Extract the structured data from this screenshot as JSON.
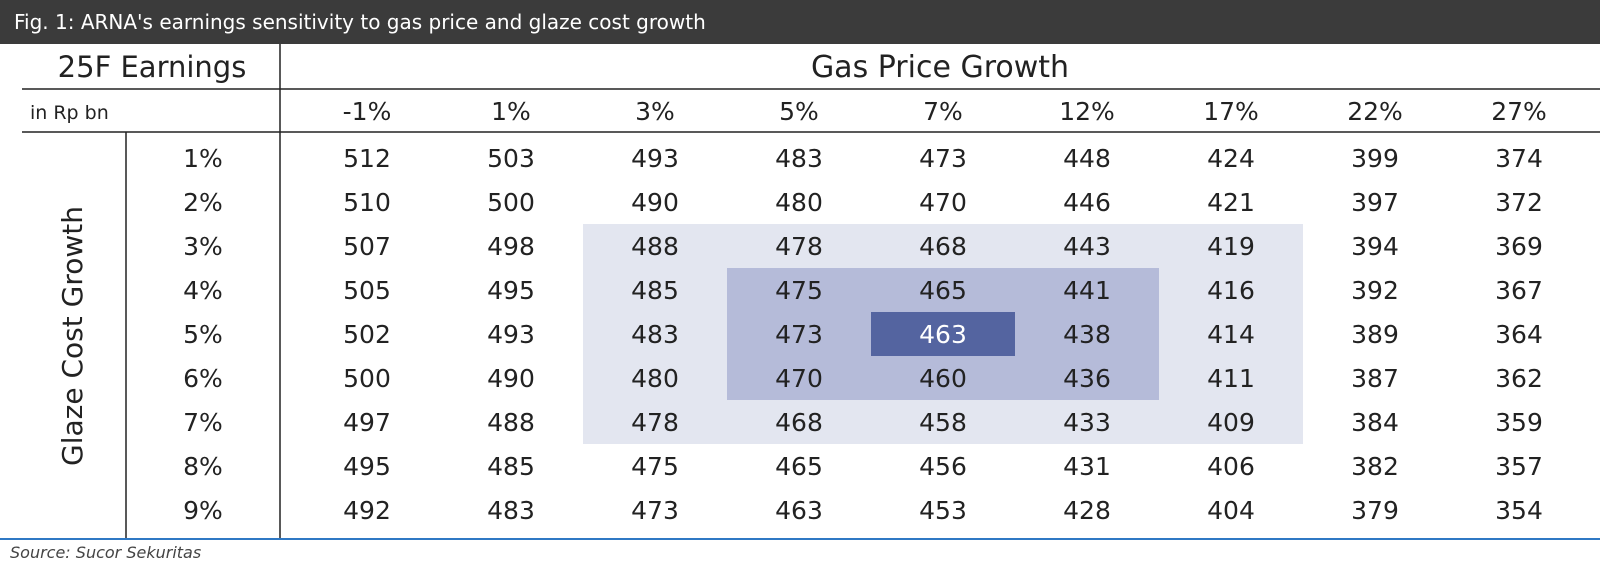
{
  "title": "Fig. 1: ARNA's earnings sensitivity to gas price and glaze cost growth",
  "source": "Source: Sucor Sekuritas",
  "colors": {
    "light": "#e3e6f0",
    "medium": "#b5bbd9",
    "dark": "#5464a0",
    "title_bg": "#3b3b3b"
  },
  "chart_data": {
    "type": "table",
    "corner_label": "25F Earnings",
    "unit_label": "in Rp bn",
    "column_axis_label": "Gas Price Growth",
    "row_axis_label": "Glaze Cost Growth",
    "columns": [
      "-1%",
      "1%",
      "3%",
      "5%",
      "7%",
      "12%",
      "17%",
      "22%",
      "27%"
    ],
    "rows": [
      "1%",
      "2%",
      "3%",
      "4%",
      "5%",
      "6%",
      "7%",
      "8%",
      "9%"
    ],
    "values": [
      [
        512,
        503,
        493,
        483,
        473,
        448,
        424,
        399,
        374
      ],
      [
        510,
        500,
        490,
        480,
        470,
        446,
        421,
        397,
        372
      ],
      [
        507,
        498,
        488,
        478,
        468,
        443,
        419,
        394,
        369
      ],
      [
        505,
        495,
        485,
        475,
        465,
        441,
        416,
        392,
        367
      ],
      [
        502,
        493,
        483,
        473,
        463,
        438,
        414,
        389,
        364
      ],
      [
        500,
        490,
        480,
        470,
        460,
        436,
        411,
        387,
        362
      ],
      [
        497,
        488,
        478,
        468,
        458,
        433,
        409,
        384,
        359
      ],
      [
        495,
        485,
        475,
        465,
        456,
        431,
        406,
        382,
        357
      ],
      [
        492,
        483,
        473,
        463,
        453,
        428,
        404,
        379,
        354
      ]
    ],
    "highlight_bands": [
      {
        "level": "light",
        "row_range": [
          2,
          6
        ],
        "col_range": [
          2,
          6
        ]
      },
      {
        "level": "medium",
        "row_range": [
          3,
          5
        ],
        "col_range": [
          3,
          5
        ]
      },
      {
        "level": "dark",
        "row_range": [
          4,
          4
        ],
        "col_range": [
          4,
          4
        ]
      }
    ]
  }
}
